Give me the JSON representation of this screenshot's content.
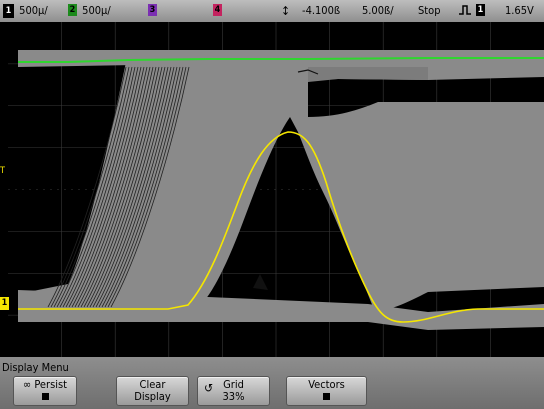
{
  "status_bar": {
    "ch1": {
      "num": "1",
      "scale": "500μ/"
    },
    "ch2": {
      "num": "2",
      "scale": "500μ/"
    },
    "ch3": {
      "num": "3"
    },
    "ch4": {
      "num": "4"
    },
    "delay": "-4.100ß",
    "timebase": "5.00ß/",
    "run_state": "Stop",
    "trigger_source": "1",
    "trigger_level": "1.65V"
  },
  "markers": {
    "ch1_ground": "1",
    "trigger_level": "T"
  },
  "menu": {
    "title": "Display Menu",
    "softkeys": [
      {
        "line1": "∞ Persist"
      },
      {
        "line1": "Clear",
        "line2": "Display"
      },
      {
        "line1": "Grid",
        "line2": "33%"
      },
      {
        "line1": "Vectors"
      }
    ]
  },
  "colors": {
    "ch1": "#f5e600",
    "ch2": "#2fd62f",
    "persistence": "#8a8a8a",
    "grid": "#3a3a3a"
  }
}
